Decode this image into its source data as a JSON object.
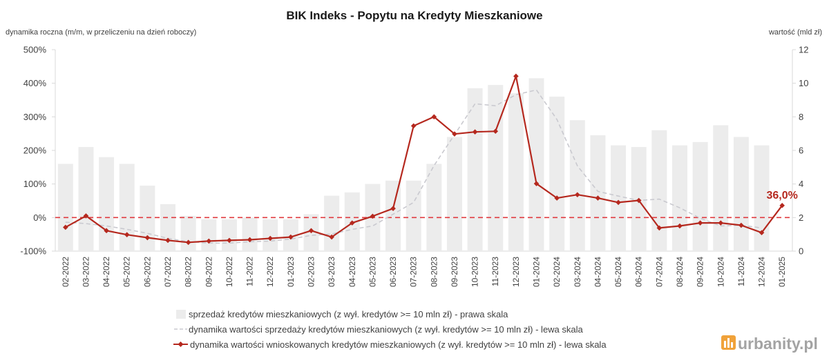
{
  "chart_data": {
    "type": "bar",
    "title": "BIK Indeks - Popytu na Kredyty Mieszkaniowe",
    "ylabel_left": "dynamika roczna (m/m, w przeliczeniu na dzień roboczy)",
    "ylabel_right": "wartość (mld zł)",
    "categories": [
      "02-2022",
      "03-2022",
      "04-2022",
      "05-2022",
      "06-2022",
      "07-2022",
      "08-2022",
      "09-2022",
      "10-2022",
      "11-2022",
      "12-2022",
      "01-2023",
      "02-2023",
      "03-2023",
      "04-2023",
      "05-2023",
      "06-2023",
      "07-2023",
      "08-2023",
      "09-2023",
      "10-2023",
      "11-2023",
      "12-2023",
      "01-2024",
      "02-2024",
      "03-2024",
      "04-2024",
      "05-2024",
      "06-2024",
      "07-2024",
      "08-2024",
      "09-2024",
      "10-2024",
      "11-2024",
      "12-2024",
      "01-2025"
    ],
    "ylim_left": [
      -100,
      500
    ],
    "ylim_right": [
      0,
      12
    ],
    "yticks_left": [
      {
        "value": -100,
        "label": "-100%"
      },
      {
        "value": 0,
        "label": "0%"
      },
      {
        "value": 100,
        "label": "100%"
      },
      {
        "value": 200,
        "label": "200%"
      },
      {
        "value": 300,
        "label": "300%"
      },
      {
        "value": 400,
        "label": "400%"
      },
      {
        "value": 500,
        "label": "500%"
      }
    ],
    "yticks_right": [
      {
        "value": 0,
        "label": "0"
      },
      {
        "value": 2,
        "label": "2"
      },
      {
        "value": 4,
        "label": "4"
      },
      {
        "value": 6,
        "label": "6"
      },
      {
        "value": 8,
        "label": "8"
      },
      {
        "value": 10,
        "label": "10"
      },
      {
        "value": 12,
        "label": "12"
      }
    ],
    "grid": false,
    "legend_position": "bottom",
    "series": [
      {
        "name": "sprzedaż kredytów mieszkaniowych (z wył. kredytów >= 10 mln zł) - prawa skala",
        "kind": "bar",
        "axis": "right",
        "color": "#ececec",
        "values": [
          5.2,
          6.2,
          5.6,
          5.2,
          3.9,
          2.8,
          2.1,
          1.9,
          1.9,
          2.0,
          1.9,
          1.9,
          2.2,
          3.3,
          3.5,
          4.0,
          4.2,
          4.2,
          5.2,
          6.8,
          9.7,
          9.9,
          9.4,
          10.3,
          9.2,
          7.8,
          6.9,
          6.3,
          6.2,
          7.2,
          6.3,
          6.5,
          7.5,
          6.8,
          6.3,
          null
        ]
      },
      {
        "name": "dynamika wartości sprzedaży kredytów mieszkaniowych (z wył. kredytów >= 10 mln zł) - lewa skala",
        "kind": "line",
        "style": "dashed",
        "axis": "left",
        "color": "#c9c9cf",
        "values": [
          -14,
          -18,
          -25,
          -35,
          -47,
          -62,
          -72,
          -76,
          -76,
          -72,
          -70,
          -64,
          -53,
          -49,
          -35,
          -25,
          10,
          45,
          155,
          247,
          339,
          333,
          366,
          380,
          292,
          154,
          78,
          64,
          51,
          55,
          29,
          -2,
          -25,
          -23,
          -31,
          null
        ]
      },
      {
        "name": "dynamika wartości wnioskowanych kredytów mieszkaniowych (z wył. kredytów >= 10 mln zł) - lewa skala",
        "kind": "line",
        "style": "solid",
        "marker": "diamond",
        "axis": "left",
        "color": "#b5281e",
        "values": [
          -29,
          5,
          -39,
          -51,
          -60,
          -68,
          -74,
          -70,
          -68,
          -66,
          -62,
          -58,
          -39,
          -58,
          -16,
          4,
          27,
          273,
          300,
          249,
          255,
          257,
          421,
          101,
          58,
          68,
          58,
          45,
          51,
          -31,
          -25,
          -16,
          -16,
          -23,
          -45,
          36
        ]
      }
    ],
    "reference_line": {
      "value": 0,
      "axis": "left",
      "color": "#e0393e",
      "style": "dashed"
    },
    "annotations": [
      {
        "series": 2,
        "category": "01-2025",
        "value": 36,
        "text": "36,0%",
        "color": "#b5281e"
      }
    ],
    "axis_color": "#d9d9d9"
  },
  "watermark": {
    "text": "urbanity.pl",
    "icon": "building-logo-icon",
    "icon_color": "#f0a23a"
  }
}
